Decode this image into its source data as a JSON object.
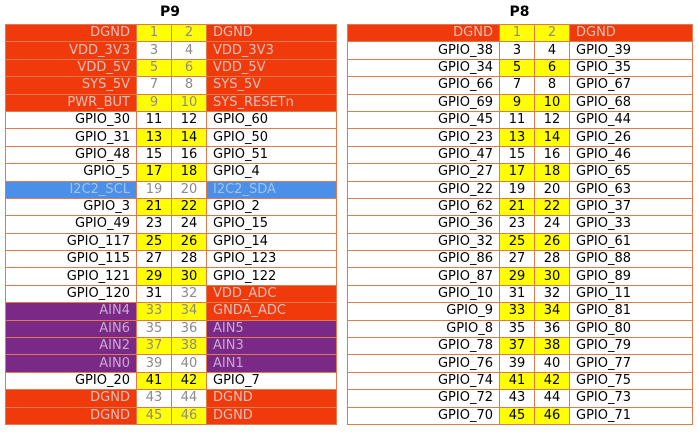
{
  "headers": {
    "p9": "P9",
    "p8": "P8"
  },
  "p9": [
    {
      "l": "DGND",
      "a": "1",
      "b": "2",
      "r": "DGND",
      "lc": "red",
      "rc": "red",
      "pa": "yel-grey",
      "pb": "yel-grey"
    },
    {
      "l": "VDD_3V3",
      "a": "3",
      "b": "4",
      "r": "VDD_3V3",
      "lc": "red",
      "rc": "red",
      "pa": "grey",
      "pb": "grey"
    },
    {
      "l": "VDD_5V",
      "a": "5",
      "b": "6",
      "r": "VDD_5V",
      "lc": "red",
      "rc": "red",
      "pa": "yel-grey",
      "pb": "yel-grey"
    },
    {
      "l": "SYS_5V",
      "a": "7",
      "b": "8",
      "r": "SYS_5V",
      "lc": "red",
      "rc": "red",
      "pa": "grey",
      "pb": "grey"
    },
    {
      "l": "PWR_BUT",
      "a": "9",
      "b": "10",
      "r": "SYS_RESETn",
      "lc": "red",
      "rc": "red",
      "pa": "yel-grey",
      "pb": "yel-grey"
    },
    {
      "l": "GPIO_30",
      "a": "11",
      "b": "12",
      "r": "GPIO_60",
      "lc": "white",
      "rc": "white",
      "pa": "wht",
      "pb": "wht"
    },
    {
      "l": "GPIO_31",
      "a": "13",
      "b": "14",
      "r": "GPIO_50",
      "lc": "white",
      "rc": "white",
      "pa": "yel",
      "pb": "yel"
    },
    {
      "l": "GPIO_48",
      "a": "15",
      "b": "16",
      "r": "GPIO_51",
      "lc": "white",
      "rc": "white",
      "pa": "wht",
      "pb": "wht"
    },
    {
      "l": "GPIO_5",
      "a": "17",
      "b": "18",
      "r": "GPIO_4",
      "lc": "white",
      "rc": "white",
      "pa": "yel",
      "pb": "yel"
    },
    {
      "l": "I2C2_SCL",
      "a": "19",
      "b": "20",
      "r": "I2C2_SDA",
      "lc": "blue",
      "rc": "blue",
      "pa": "grey",
      "pb": "grey"
    },
    {
      "l": "GPIO_3",
      "a": "21",
      "b": "22",
      "r": "GPIO_2",
      "lc": "white",
      "rc": "white",
      "pa": "yel",
      "pb": "yel"
    },
    {
      "l": "GPIO_49",
      "a": "23",
      "b": "24",
      "r": "GPIO_15",
      "lc": "white",
      "rc": "white",
      "pa": "wht",
      "pb": "wht"
    },
    {
      "l": "GPIO_117",
      "a": "25",
      "b": "26",
      "r": "GPIO_14",
      "lc": "white",
      "rc": "white",
      "pa": "yel",
      "pb": "yel"
    },
    {
      "l": "GPIO_115",
      "a": "27",
      "b": "28",
      "r": "GPIO_123",
      "lc": "white",
      "rc": "white",
      "pa": "wht",
      "pb": "wht"
    },
    {
      "l": "GPIO_121",
      "a": "29",
      "b": "30",
      "r": "GPIO_122",
      "lc": "white",
      "rc": "white",
      "pa": "yel",
      "pb": "yel"
    },
    {
      "l": "GPIO_120",
      "a": "31",
      "b": "32",
      "r": "VDD_ADC",
      "lc": "white",
      "rc": "red",
      "pa": "wht",
      "pb": "grey"
    },
    {
      "l": "AIN4",
      "a": "33",
      "b": "34",
      "r": "GNDA_ADC",
      "lc": "purple",
      "rc": "red",
      "pa": "yel-grey",
      "pb": "yel-grey"
    },
    {
      "l": "AIN6",
      "a": "35",
      "b": "36",
      "r": "AIN5",
      "lc": "purple",
      "rc": "purple",
      "pa": "grey",
      "pb": "grey"
    },
    {
      "l": "AIN2",
      "a": "37",
      "b": "38",
      "r": "AIN3",
      "lc": "purple",
      "rc": "purple",
      "pa": "yel-grey",
      "pb": "yel-grey"
    },
    {
      "l": "AIN0",
      "a": "39",
      "b": "40",
      "r": "AIN1",
      "lc": "purple",
      "rc": "purple",
      "pa": "grey",
      "pb": "grey"
    },
    {
      "l": "GPIO_20",
      "a": "41",
      "b": "42",
      "r": "GPIO_7",
      "lc": "white",
      "rc": "white",
      "pa": "yel",
      "pb": "yel"
    },
    {
      "l": "DGND",
      "a": "43",
      "b": "44",
      "r": "DGND",
      "lc": "red",
      "rc": "red",
      "pa": "grey",
      "pb": "grey"
    },
    {
      "l": "DGND",
      "a": "45",
      "b": "46",
      "r": "DGND",
      "lc": "red",
      "rc": "red",
      "pa": "yel-grey",
      "pb": "yel-grey"
    }
  ],
  "p8": [
    {
      "l": "DGND",
      "a": "1",
      "b": "2",
      "r": "DGND",
      "lc": "red",
      "rc": "red",
      "pa": "yel-grey",
      "pb": "yel-grey"
    },
    {
      "l": "GPIO_38",
      "a": "3",
      "b": "4",
      "r": "GPIO_39",
      "lc": "white",
      "rc": "white",
      "pa": "wht",
      "pb": "wht"
    },
    {
      "l": "GPIO_34",
      "a": "5",
      "b": "6",
      "r": "GPIO_35",
      "lc": "white",
      "rc": "white",
      "pa": "yel",
      "pb": "yel"
    },
    {
      "l": "GPIO_66",
      "a": "7",
      "b": "8",
      "r": "GPIO_67",
      "lc": "white",
      "rc": "white",
      "pa": "wht",
      "pb": "wht"
    },
    {
      "l": "GPIO_69",
      "a": "9",
      "b": "10",
      "r": "GPIO_68",
      "lc": "white",
      "rc": "white",
      "pa": "yel",
      "pb": "yel"
    },
    {
      "l": "GPIO_45",
      "a": "11",
      "b": "12",
      "r": "GPIO_44",
      "lc": "white",
      "rc": "white",
      "pa": "wht",
      "pb": "wht"
    },
    {
      "l": "GPIO_23",
      "a": "13",
      "b": "14",
      "r": "GPIO_26",
      "lc": "white",
      "rc": "white",
      "pa": "yel",
      "pb": "yel"
    },
    {
      "l": "GPIO_47",
      "a": "15",
      "b": "16",
      "r": "GPIO_46",
      "lc": "white",
      "rc": "white",
      "pa": "wht",
      "pb": "wht"
    },
    {
      "l": "GPIO_27",
      "a": "17",
      "b": "18",
      "r": "GPIO_65",
      "lc": "white",
      "rc": "white",
      "pa": "yel",
      "pb": "yel"
    },
    {
      "l": "GPIO_22",
      "a": "19",
      "b": "20",
      "r": "GPIO_63",
      "lc": "white",
      "rc": "white",
      "pa": "wht",
      "pb": "wht"
    },
    {
      "l": "GPIO_62",
      "a": "21",
      "b": "22",
      "r": "GPIO_37",
      "lc": "white",
      "rc": "white",
      "pa": "yel",
      "pb": "yel"
    },
    {
      "l": "GPIO_36",
      "a": "23",
      "b": "24",
      "r": "GPIO_33",
      "lc": "white",
      "rc": "white",
      "pa": "wht",
      "pb": "wht"
    },
    {
      "l": "GPIO_32",
      "a": "25",
      "b": "26",
      "r": "GPIO_61",
      "lc": "white",
      "rc": "white",
      "pa": "yel",
      "pb": "yel"
    },
    {
      "l": "GPIO_86",
      "a": "27",
      "b": "28",
      "r": "GPIO_88",
      "lc": "white",
      "rc": "white",
      "pa": "wht",
      "pb": "wht"
    },
    {
      "l": "GPIO_87",
      "a": "29",
      "b": "30",
      "r": "GPIO_89",
      "lc": "white",
      "rc": "white",
      "pa": "yel",
      "pb": "yel"
    },
    {
      "l": "GPIO_10",
      "a": "31",
      "b": "32",
      "r": "GPIO_11",
      "lc": "white",
      "rc": "white",
      "pa": "wht",
      "pb": "wht"
    },
    {
      "l": "GPIO_9",
      "a": "33",
      "b": "34",
      "r": "GPIO_81",
      "lc": "white",
      "rc": "white",
      "pa": "yel",
      "pb": "yel"
    },
    {
      "l": "GPIO_8",
      "a": "35",
      "b": "36",
      "r": "GPIO_80",
      "lc": "white",
      "rc": "white",
      "pa": "wht",
      "pb": "wht"
    },
    {
      "l": "GPIO_78",
      "a": "37",
      "b": "38",
      "r": "GPIO_79",
      "lc": "white",
      "rc": "white",
      "pa": "yel",
      "pb": "yel"
    },
    {
      "l": "GPIO_76",
      "a": "39",
      "b": "40",
      "r": "GPIO_77",
      "lc": "white",
      "rc": "white",
      "pa": "wht",
      "pb": "wht"
    },
    {
      "l": "GPIO_74",
      "a": "41",
      "b": "42",
      "r": "GPIO_75",
      "lc": "white",
      "rc": "white",
      "pa": "yel",
      "pb": "yel"
    },
    {
      "l": "GPIO_72",
      "a": "43",
      "b": "44",
      "r": "GPIO_73",
      "lc": "white",
      "rc": "white",
      "pa": "wht",
      "pb": "wht"
    },
    {
      "l": "GPIO_70",
      "a": "45",
      "b": "46",
      "r": "GPIO_71",
      "lc": "white",
      "rc": "white",
      "pa": "yel",
      "pb": "yel"
    }
  ]
}
